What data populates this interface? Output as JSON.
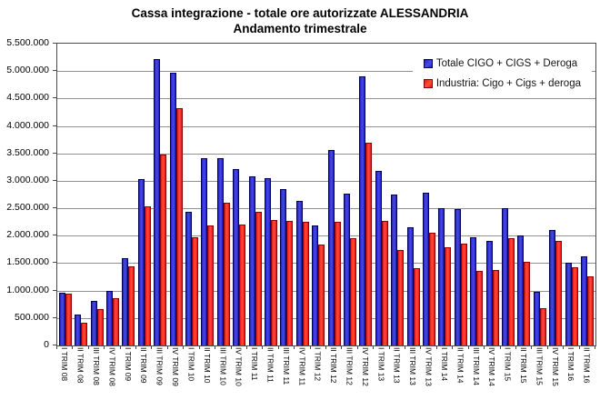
{
  "title": {
    "line1": "Cassa integrazione - totale ore autorizzate ALESSANDRIA",
    "line2": "Andamento trimestrale"
  },
  "chart_data": {
    "type": "bar",
    "title": "Cassa integrazione - totale ore autorizzate ALESSANDRIA",
    "subtitle": "Andamento trimestrale",
    "xlabel": "",
    "ylabel": "",
    "ylim": [
      0,
      5500000
    ],
    "ytick_step": 500000,
    "ytick_labels": [
      "0",
      "500.000",
      "1.000.000",
      "1.500.000",
      "2.000.000",
      "2.500.000",
      "3.000.000",
      "3.500.000",
      "4.000.000",
      "4.500.000",
      "5.000.000",
      "5.500.000"
    ],
    "grid": true,
    "legend_position": "top-right-inside",
    "categories": [
      "I TRIM 08",
      "II TRIM 08",
      "III TRIM 08",
      "IV TRIM 08",
      "I TRIM 09",
      "II TRIM 09",
      "III TRIM 09",
      "IV TRIM 09",
      "I TRIM 10",
      "II TRIM 10",
      "III TRIM 10",
      "IV TRIM 10",
      "I TRIM 11",
      "II TRIM 11",
      "III TRIM 11",
      "IV TRIM 11",
      "I TRIM 12",
      "II TRIM 12",
      "III TRIM 12",
      "IV TRIM 12",
      "I TRIM 13",
      "II TRIM 13",
      "III TRIM 13",
      "IV TRIM 13",
      "I TRIM 14",
      "II TRIM 14",
      "III TRIM 14",
      "IV TRIM 14",
      "I TRIM 15",
      "II TRIM 15",
      "III TRIM 15",
      "IV TRIM 15",
      "I TRIM 16",
      "II TRIM 16"
    ],
    "series": [
      {
        "name": "Totale CIGO + CIGS + Deroga",
        "color": "#2121c4",
        "highlight": "#4a4ae6",
        "border": "#000055",
        "values": [
          950000,
          540000,
          790000,
          970000,
          1580000,
          3020000,
          5200000,
          4950000,
          2420000,
          3400000,
          3390000,
          3200000,
          3070000,
          3030000,
          2840000,
          2620000,
          2170000,
          3550000,
          2750000,
          4880000,
          3160000,
          2730000,
          2140000,
          2770000,
          2490000,
          2470000,
          1950000,
          1890000,
          2480000,
          1990000,
          960000,
          2080000,
          1490000,
          1600000
        ]
      },
      {
        "name": "Industria: Cigo + Cigs + deroga",
        "color": "#f01212",
        "highlight": "#ff4f3a",
        "border": "#8a0000",
        "values": [
          920000,
          390000,
          640000,
          850000,
          1430000,
          2520000,
          3460000,
          4300000,
          1960000,
          2170000,
          2580000,
          2180000,
          2420000,
          2270000,
          2260000,
          2230000,
          1820000,
          2240000,
          1940000,
          3670000,
          2260000,
          1730000,
          1390000,
          2040000,
          1770000,
          1840000,
          1340000,
          1360000,
          1940000,
          1510000,
          670000,
          1890000,
          1410000,
          1240000
        ]
      }
    ],
    "colors": {
      "gridline": "#8f8f8f",
      "plot_border": "#4a4a4a",
      "text": "#000000"
    }
  },
  "legend": {
    "items": [
      {
        "label": "Totale CIGO + CIGS + Deroga"
      },
      {
        "label": "Industria: Cigo + Cigs + deroga"
      }
    ]
  }
}
